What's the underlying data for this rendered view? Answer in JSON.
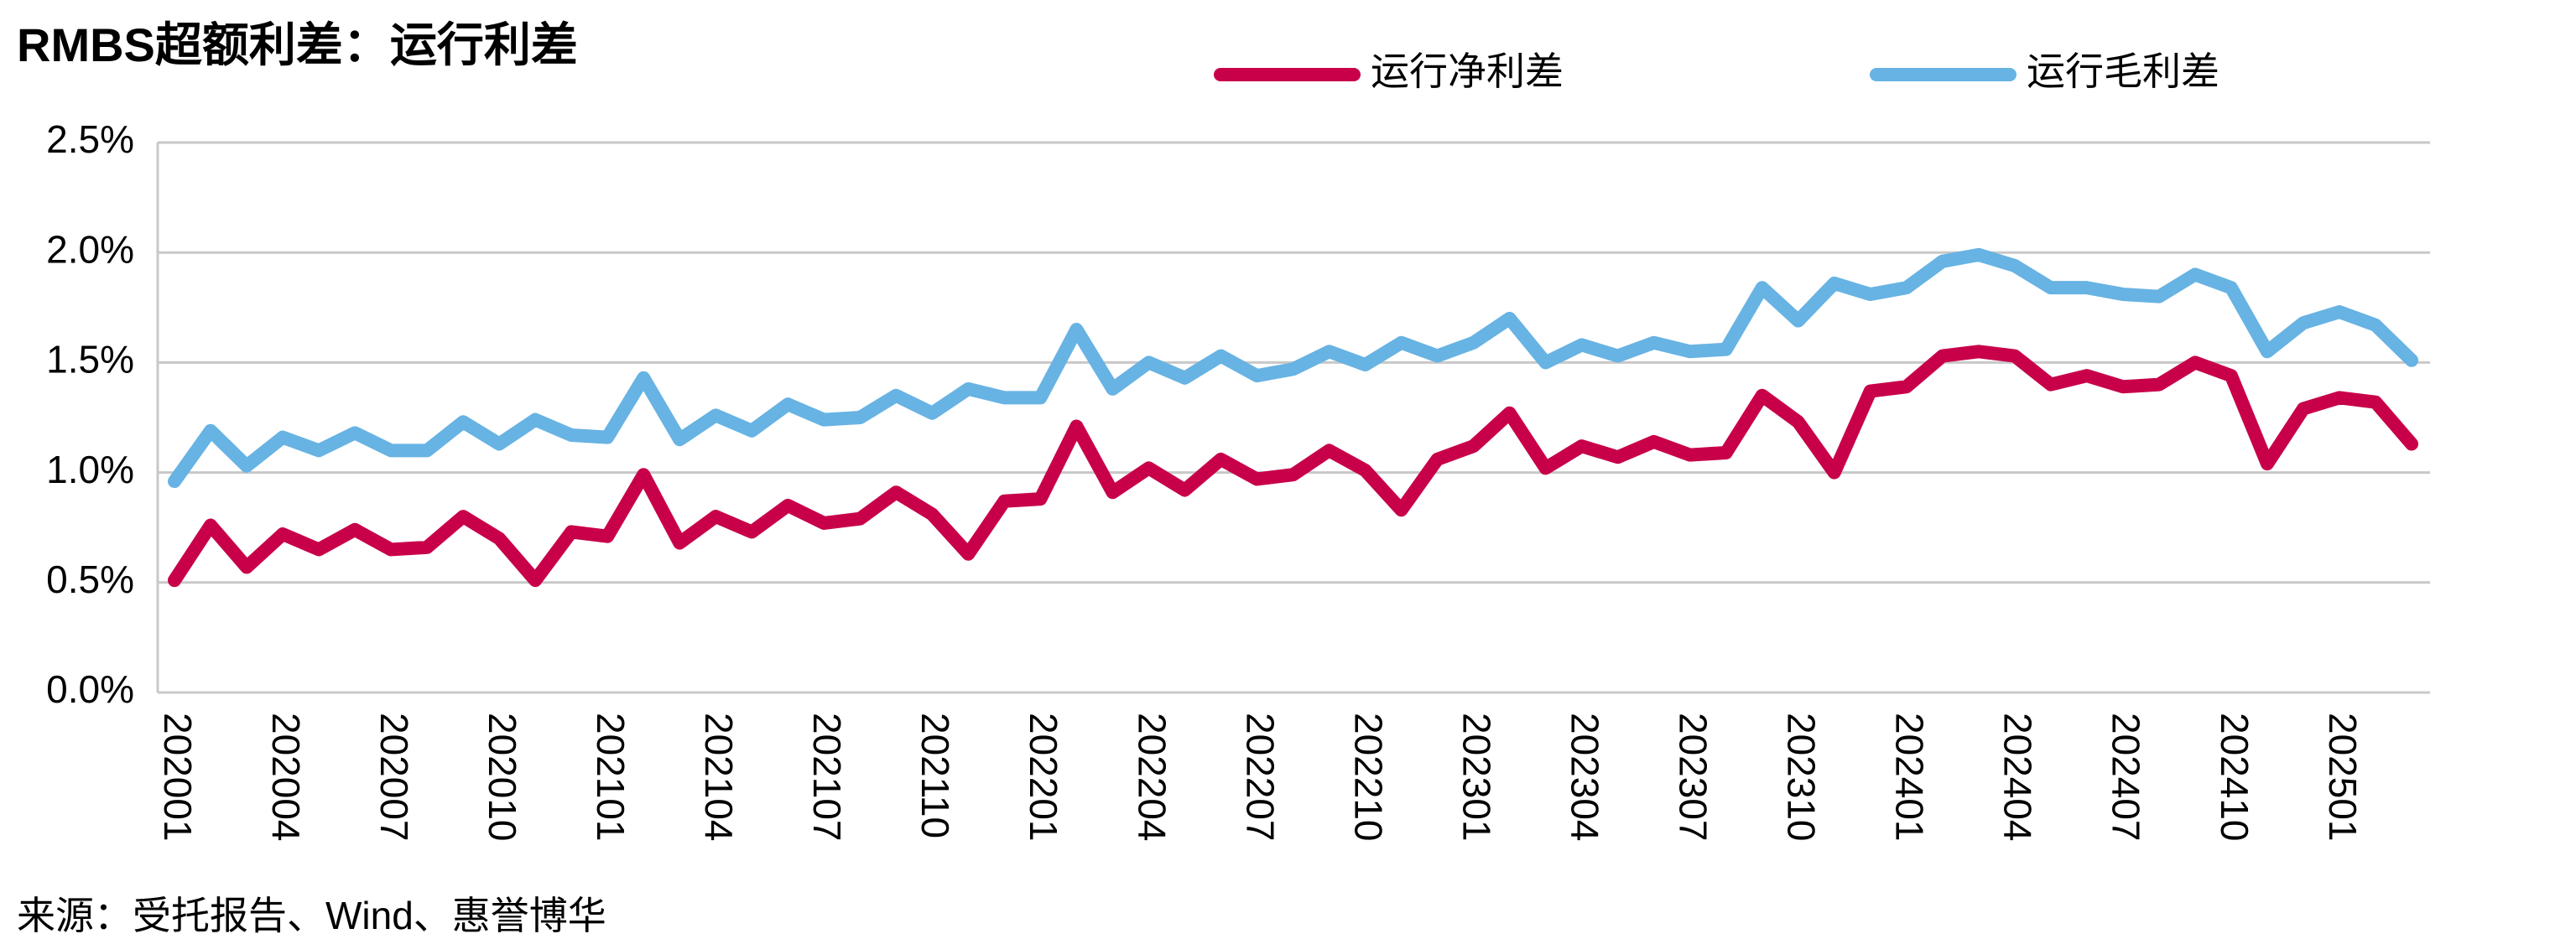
{
  "chart_data": {
    "type": "line",
    "title": "RMBS超额利差：运行利差",
    "source": "来源：受托报告、Wind、惠誉博华",
    "categories": [
      "202001",
      null,
      null,
      "202004",
      null,
      null,
      "202007",
      null,
      null,
      "202010",
      null,
      null,
      "202101",
      null,
      null,
      "202104",
      null,
      null,
      "202107",
      null,
      null,
      "202110",
      null,
      null,
      "202201",
      null,
      null,
      "202204",
      null,
      null,
      "202207",
      null,
      null,
      "202210",
      null,
      null,
      "202301",
      null,
      null,
      "202304",
      null,
      null,
      "202307",
      null,
      null,
      "202310",
      null,
      null,
      "202401",
      null,
      null,
      "202404",
      null,
      null,
      "202407",
      null,
      null,
      "202410",
      null,
      null,
      "202501",
      null,
      null
    ],
    "series": [
      {
        "name": "运行净利差",
        "color": "#c8004a",
        "values": [
          0.51,
          0.76,
          0.57,
          0.72,
          0.65,
          0.74,
          0.65,
          0.66,
          0.8,
          0.7,
          0.51,
          0.73,
          0.71,
          0.99,
          0.68,
          0.8,
          0.73,
          0.85,
          0.77,
          0.79,
          0.91,
          0.81,
          0.63,
          0.87,
          0.88,
          1.21,
          0.91,
          1.02,
          0.92,
          1.06,
          0.97,
          0.99,
          1.1,
          1.01,
          0.83,
          1.06,
          1.12,
          1.27,
          1.02,
          1.12,
          1.07,
          1.14,
          1.08,
          1.09,
          1.35,
          1.23,
          1.0,
          1.37,
          1.39,
          1.53,
          1.55,
          1.53,
          1.4,
          1.44,
          1.39,
          1.4,
          1.5,
          1.44,
          1.04,
          1.29,
          1.34,
          1.32,
          1.13
        ]
      },
      {
        "name": "运行毛利差",
        "color": "#67b3e3",
        "values": [
          0.96,
          1.19,
          1.03,
          1.16,
          1.1,
          1.18,
          1.1,
          1.1,
          1.23,
          1.13,
          1.24,
          1.17,
          1.16,
          1.43,
          1.15,
          1.26,
          1.19,
          1.31,
          1.24,
          1.25,
          1.35,
          1.27,
          1.38,
          1.34,
          1.34,
          1.65,
          1.38,
          1.5,
          1.43,
          1.53,
          1.44,
          1.47,
          1.55,
          1.49,
          1.59,
          1.53,
          1.59,
          1.7,
          1.5,
          1.58,
          1.53,
          1.59,
          1.55,
          1.56,
          1.84,
          1.69,
          1.86,
          1.81,
          1.84,
          1.96,
          1.99,
          1.94,
          1.84,
          1.84,
          1.81,
          1.8,
          1.9,
          1.84,
          1.55,
          1.68,
          1.73,
          1.67,
          1.51
        ]
      }
    ],
    "ylim": [
      0,
      2.5
    ],
    "yticks": [
      {
        "value": 0,
        "label": "0.0%"
      },
      {
        "value": 0.5,
        "label": "0.5%"
      },
      {
        "value": 1,
        "label": "1.0%"
      },
      {
        "value": 1.5,
        "label": "1.5%"
      },
      {
        "value": 2,
        "label": "2.0%"
      },
      {
        "value": 2.5,
        "label": "2.5%"
      }
    ],
    "grid": true,
    "legend": "top"
  }
}
